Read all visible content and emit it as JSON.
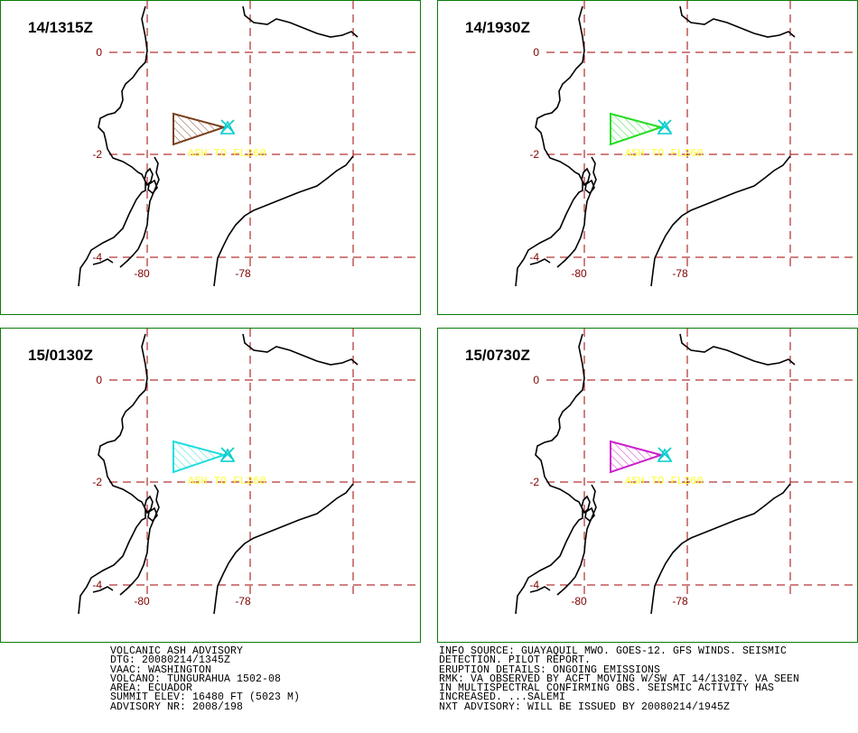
{
  "panels": [
    {
      "time": "14/1315Z",
      "ash_color": "#7a4020"
    },
    {
      "time": "14/1930Z",
      "ash_color": "#22dd22"
    },
    {
      "time": "15/0130Z",
      "ash_color": "#22dddd"
    },
    {
      "time": "15/0730Z",
      "ash_color": "#cc22cc"
    }
  ],
  "map": {
    "lat_labels": [
      "0",
      "-2",
      "-4"
    ],
    "lon_labels": [
      "-80",
      "-78"
    ],
    "ash_label": "ASH TO FL260",
    "volcano_icon": "volcano-triangle-icon",
    "grid_color": "#a00000",
    "label_color": "#800000",
    "ash_label_color": "#ffff33",
    "volcano_color": "#00cccc"
  },
  "advisory_left": [
    "VOLCANIC ASH ADVISORY",
    "DTG: 20080214/1345Z",
    "VAAC: WASHINGTON",
    "VOLCANO: TUNGURAHUA 1502-08",
    "AREA: ECUADOR",
    "SUMMIT ELEV: 16480 FT (5023 M)",
    "ADVISORY NR: 2008/198"
  ],
  "advisory_right": [
    "INFO SOURCE: GUAYAQUIL MWO. GOES-12. GFS WINDS. SEISMIC",
    "DETECTION. PILOT REPORT.",
    "ERUPTION DETAILS: ONGOING EMISSIONS",
    "RMK: VA OBSERVED BY ACFT MOVING W/SW AT 14/1310Z. VA SEEN",
    "IN MULTISPECTRAL CONFIRMING OBS. SEISMIC ACTIVITY HAS",
    "INCREASED. ...SALEMI",
    "NXT ADVISORY: WILL BE ISSUED BY 20080214/1945Z"
  ]
}
